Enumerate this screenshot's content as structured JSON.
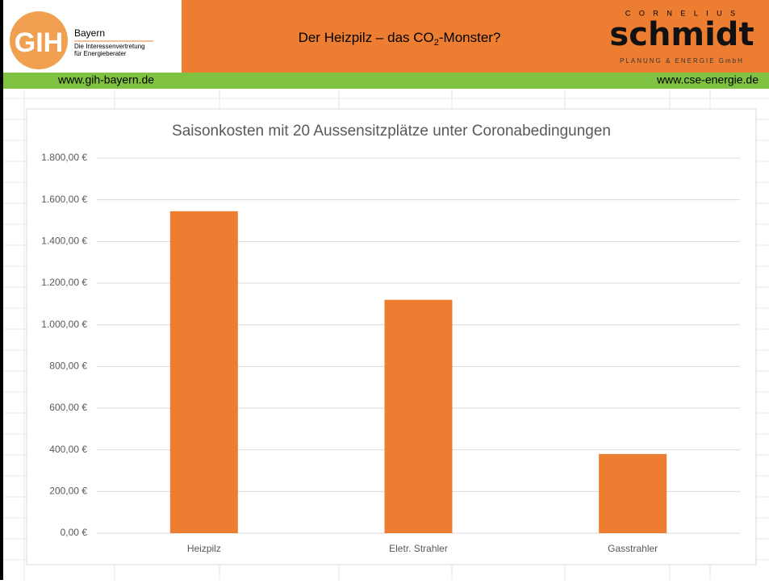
{
  "header": {
    "gih_logo": "GIH",
    "gih_region": "Bayern",
    "gih_line1": "Die Interessenvertretung",
    "gih_line2": "für Energieberater",
    "title_pre": "Der Heizpilz – das CO",
    "title_sub": "2",
    "title_post": "-Monster?",
    "cse_top": "C O R N E L I U S",
    "cse_name": "schmidt",
    "cse_bottom": "PLANUNG & ENERGIE GmbH",
    "url_left": "www.gih-bayern.de",
    "url_right": "www.cse-energie.de"
  },
  "chart_data": {
    "type": "bar",
    "title": "Saisonkosten mit 20 Aussensitzplätze unter Coronabedingungen",
    "categories": [
      "Heizpilz",
      "Eletr. Strahler",
      "Gasstrahler"
    ],
    "values": [
      1545,
      1120,
      380
    ],
    "color": "#ed7d31",
    "ylim": [
      0,
      1800
    ],
    "yticks": [
      {
        "value": 0,
        "label": "0,00 €"
      },
      {
        "value": 200,
        "label": "200,00 €"
      },
      {
        "value": 400,
        "label": "400,00 €"
      },
      {
        "value": 600,
        "label": "600,00 €"
      },
      {
        "value": 800,
        "label": "800,00 €"
      },
      {
        "value": 1000,
        "label": "1.000,00 €"
      },
      {
        "value": 1200,
        "label": "1.200,00 €"
      },
      {
        "value": 1400,
        "label": "1.400,00 €"
      },
      {
        "value": 1600,
        "label": "1.600,00 €"
      },
      {
        "value": 1800,
        "label": "1.800,00 €"
      }
    ],
    "grid": true
  }
}
